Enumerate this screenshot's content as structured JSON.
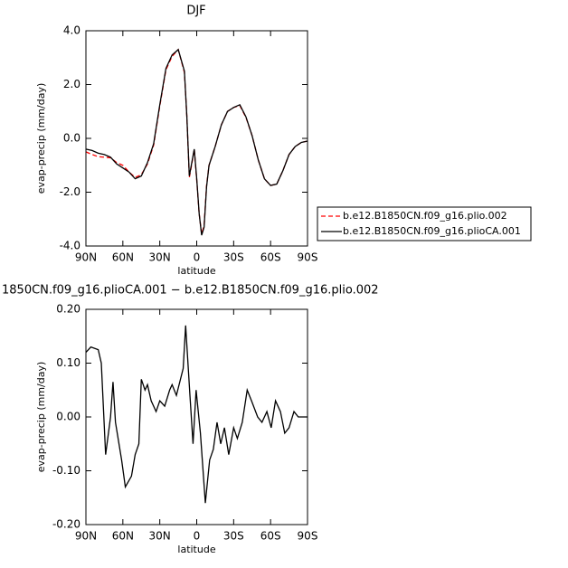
{
  "chart_data": [
    {
      "type": "line",
      "title": "DJF",
      "xlabel": "latitude",
      "ylabel": "evap-precip (mm/day)",
      "x": [
        90,
        85,
        80,
        75,
        70,
        65,
        60,
        55,
        50,
        45,
        40,
        35,
        30,
        25,
        20,
        15,
        10,
        8,
        6,
        4,
        2,
        0,
        -2,
        -4,
        -6,
        -8,
        -10,
        -15,
        -20,
        -25,
        -30,
        -35,
        -40,
        -45,
        -50,
        -55,
        -60,
        -65,
        -70,
        -75,
        -80,
        -85,
        -90
      ],
      "series": [
        {
          "name": "b.e12.B1850CN.f09_g16.plio.002",
          "color": "#ff0000",
          "linestyle": "dashed",
          "values": [
            -0.5,
            -0.6,
            -0.68,
            -0.7,
            -0.72,
            -0.9,
            -1.0,
            -1.25,
            -1.45,
            -1.35,
            -0.95,
            -0.25,
            1.2,
            2.55,
            3.05,
            3.3,
            2.45,
            0.8,
            -1.45,
            -0.95,
            -0.4,
            -1.55,
            -2.8,
            -3.55,
            -3.25,
            -1.75,
            -1.0,
            -0.3,
            0.5,
            1.0,
            1.15,
            1.22,
            0.78,
            0.1,
            -0.8,
            -1.5,
            -1.75,
            -1.7,
            -1.2,
            -0.6,
            -0.3,
            -0.15,
            -0.1
          ]
        },
        {
          "name": "b.e12.B1850CN.f09_g16.plioCA.001",
          "color": "#000000",
          "linestyle": "solid",
          "values": [
            -0.4,
            -0.45,
            -0.55,
            -0.6,
            -0.7,
            -0.95,
            -1.1,
            -1.25,
            -1.5,
            -1.4,
            -0.9,
            -0.2,
            1.25,
            2.6,
            3.1,
            3.3,
            2.5,
            0.8,
            -1.4,
            -0.9,
            -0.4,
            -1.5,
            -2.8,
            -3.6,
            -3.3,
            -1.8,
            -1.0,
            -0.3,
            0.5,
            1.0,
            1.15,
            1.25,
            0.8,
            0.1,
            -0.8,
            -1.5,
            -1.75,
            -1.7,
            -1.2,
            -0.6,
            -0.3,
            -0.15,
            -0.1
          ]
        }
      ],
      "xlim": [
        90,
        -90
      ],
      "xticks": [
        {
          "value": 90,
          "label": "90N"
        },
        {
          "value": 60,
          "label": "60N"
        },
        {
          "value": 30,
          "label": "30N"
        },
        0,
        {
          "value": -30,
          "label": "30S"
        },
        {
          "value": -60,
          "label": "60S"
        },
        {
          "value": -90,
          "label": "90S"
        }
      ],
      "ylim": [
        -4,
        4
      ],
      "yticks": [
        {
          "value": -4,
          "label": "-4.0"
        },
        {
          "value": -2,
          "label": "-2.0"
        },
        {
          "value": 0,
          "label": "0.0"
        },
        {
          "value": 2,
          "label": "2.0"
        },
        {
          "value": 4,
          "label": "4.0"
        }
      ],
      "legend": true
    },
    {
      "type": "line",
      "title": "1850CN.f09_g16.plioCA.001 − b.e12.B1850CN.f09_g16.plio.002",
      "xlabel": "latitude",
      "ylabel": "evap-precip (mm/day)",
      "x": [
        90,
        86,
        80,
        77.5,
        74,
        70,
        68,
        66,
        61,
        58,
        53,
        50,
        47,
        45,
        42,
        40,
        37,
        33,
        30,
        26,
        22,
        20,
        16.5,
        11,
        9,
        5.5,
        3,
        0.5,
        -3,
        -7,
        -10.5,
        -13.5,
        -16.5,
        -19.5,
        -22.5,
        -26,
        -30,
        -33,
        -37,
        -41,
        -44.5,
        -49.5,
        -53,
        -57,
        -60.5,
        -64,
        -68,
        -71.5,
        -75,
        -79,
        -82.5,
        -90
      ],
      "series": [
        {
          "color": "#000000",
          "linestyle": "solid",
          "values": [
            0.12,
            0.13,
            0.125,
            0.1,
            -0.07,
            0.0,
            0.065,
            -0.01,
            -0.08,
            -0.13,
            -0.11,
            -0.07,
            -0.05,
            0.07,
            0.05,
            0.06,
            0.03,
            0.01,
            0.03,
            0.02,
            0.05,
            0.06,
            0.04,
            0.09,
            0.17,
            0.04,
            -0.05,
            0.05,
            -0.03,
            -0.16,
            -0.08,
            -0.06,
            -0.01,
            -0.05,
            -0.02,
            -0.07,
            -0.02,
            -0.04,
            -0.01,
            0.05,
            0.03,
            0.0,
            -0.01,
            0.01,
            -0.02,
            0.03,
            0.01,
            -0.03,
            -0.02,
            0.01,
            0.0,
            0.0
          ]
        }
      ],
      "xlim": [
        90,
        -90
      ],
      "xticks": [
        {
          "value": 90,
          "label": "90N"
        },
        {
          "value": 60,
          "label": "60N"
        },
        {
          "value": 30,
          "label": "30N"
        },
        0,
        {
          "value": -30,
          "label": "30S"
        },
        {
          "value": -60,
          "label": "60S"
        },
        {
          "value": -90,
          "label": "90S"
        }
      ],
      "ylim": [
        -0.2,
        0.2
      ],
      "yticks": [
        {
          "value": -0.2,
          "label": "-0.20"
        },
        {
          "value": -0.1,
          "label": "-0.10"
        },
        {
          "value": 0,
          "label": "0.00"
        },
        {
          "value": 0.1,
          "label": "0.10"
        },
        {
          "value": 0.2,
          "label": "0.20"
        }
      ],
      "legend": false
    }
  ]
}
